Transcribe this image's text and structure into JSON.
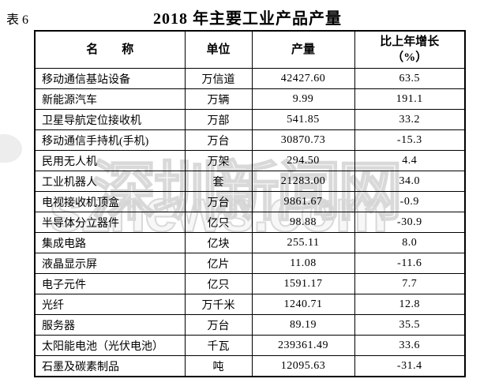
{
  "page": {
    "table_label": "表 6",
    "title": "2018 年主要工业产品产量"
  },
  "watermark": {
    "line1": "深圳新闻网",
    "line2": "sznews.com"
  },
  "table": {
    "header": {
      "name": "名　　称",
      "unit": "单位",
      "output": "产量",
      "growth_line1": "比上年增长",
      "growth_line2": "（%）"
    },
    "rows": [
      {
        "name": "移动通信基站设备",
        "unit": "万信道",
        "output": "42427.60",
        "growth": "63.5"
      },
      {
        "name": "新能源汽车",
        "unit": "万辆",
        "output": "9.99",
        "growth": "191.1"
      },
      {
        "name": "卫星导航定位接收机",
        "unit": "万部",
        "output": "541.85",
        "growth": "33.2"
      },
      {
        "name": "移动通信手持机(手机)",
        "unit": "万台",
        "output": "30870.73",
        "growth": "-15.3"
      },
      {
        "name": "民用无人机",
        "unit": "万架",
        "output": "294.50",
        "growth": "4.4"
      },
      {
        "name": "工业机器人",
        "unit": "套",
        "output": "21283.00",
        "growth": "34.0"
      },
      {
        "name": "电视接收机顶盒",
        "unit": "万台",
        "output": "9861.67",
        "growth": "-0.9"
      },
      {
        "name": "半导体分立器件",
        "unit": "亿只",
        "output": "98.88",
        "growth": "-30.9"
      },
      {
        "name": "集成电路",
        "unit": "亿块",
        "output": "255.11",
        "growth": "8.0"
      },
      {
        "name": "液晶显示屏",
        "unit": "亿片",
        "output": "11.08",
        "growth": "-11.6"
      },
      {
        "name": "电子元件",
        "unit": "亿只",
        "output": "1591.17",
        "growth": "7.7"
      },
      {
        "name": "光纤",
        "unit": "万千米",
        "output": "1240.71",
        "growth": "12.8"
      },
      {
        "name": "服务器",
        "unit": "万台",
        "output": "89.19",
        "growth": "35.5"
      },
      {
        "name": "太阳能电池（光伏电池）",
        "unit": "千瓦",
        "output": "239361.49",
        "growth": "33.6"
      },
      {
        "name": "石墨及碳素制品",
        "unit": "吨",
        "output": "12095.63",
        "growth": "-31.4"
      }
    ]
  }
}
